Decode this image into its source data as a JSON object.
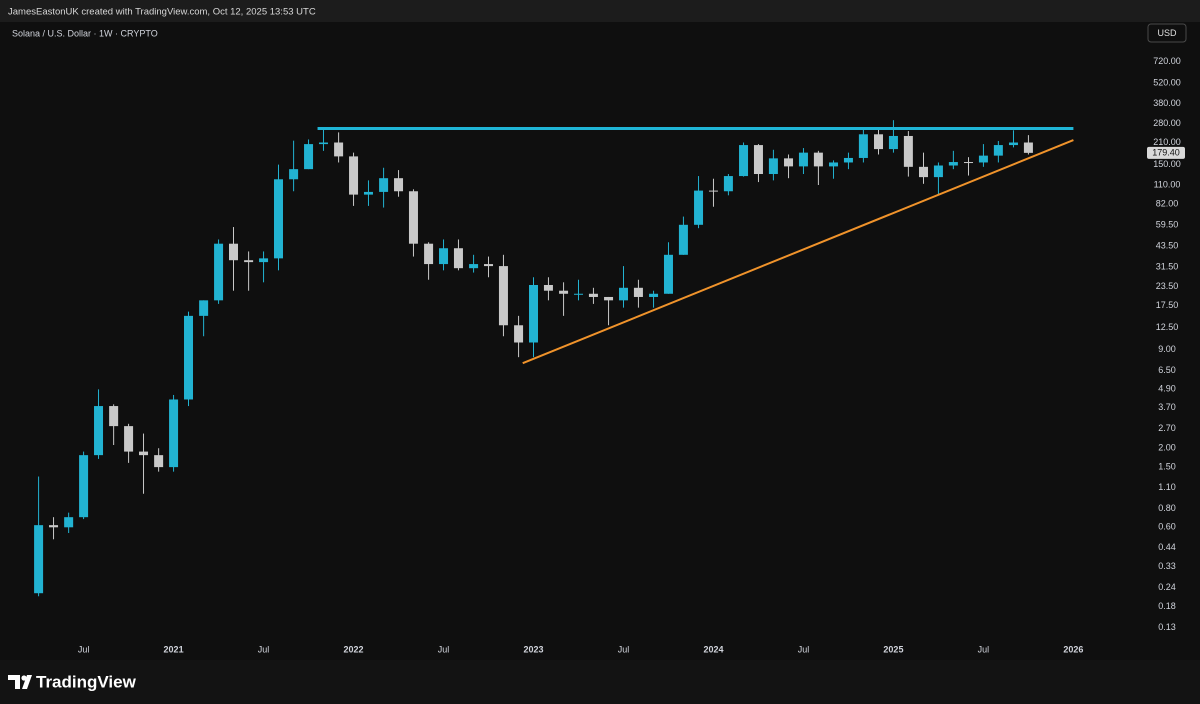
{
  "header": {
    "credit": "JamesEastonUK created with TradingView.com, Oct 12, 2025 13:53 UTC",
    "brand": "TradingView"
  },
  "chart_data": {
    "type": "candlestick",
    "title": "Solana / U.S. Dollar · 1W · CRYPTO",
    "currency": "USD",
    "log_scale": true,
    "grid": false,
    "up_color": "#22b3d2",
    "down_color": "#c9c9c9",
    "x": [
      2020.25,
      2020.333,
      2020.417,
      2020.5,
      2020.583,
      2020.667,
      2020.75,
      2020.833,
      2020.917,
      2021,
      2021.083,
      2021.167,
      2021.25,
      2021.333,
      2021.417,
      2021.5,
      2021.583,
      2021.667,
      2021.75,
      2021.833,
      2021.917,
      2022,
      2022.083,
      2022.167,
      2022.25,
      2022.333,
      2022.417,
      2022.5,
      2022.583,
      2022.667,
      2022.75,
      2022.833,
      2022.917,
      2023,
      2023.083,
      2023.167,
      2023.25,
      2023.333,
      2023.417,
      2023.5,
      2023.583,
      2023.667,
      2023.75,
      2023.833,
      2023.917,
      2024,
      2024.083,
      2024.167,
      2024.25,
      2024.333,
      2024.417,
      2024.5,
      2024.583,
      2024.667,
      2024.75,
      2024.833,
      2024.917,
      2025,
      2025.083,
      2025.167,
      2025.25,
      2025.333,
      2025.417,
      2025.5,
      2025.583,
      2025.667,
      2025.75
    ],
    "open": [
      0.22,
      0.62,
      0.6,
      0.7,
      1.8,
      3.8,
      2.8,
      1.9,
      1.8,
      1.5,
      4.2,
      15,
      19,
      45,
      35,
      34,
      36,
      120,
      140,
      205,
      210,
      170,
      95,
      99,
      122,
      100,
      45,
      33,
      42,
      31,
      33,
      32,
      13,
      10,
      24,
      22,
      21,
      21,
      20,
      19,
      23,
      20,
      21,
      38,
      60,
      101,
      100,
      126,
      202,
      130,
      165,
      146,
      180,
      146,
      155,
      166,
      238,
      190,
      232,
      145,
      124,
      148,
      156,
      155,
      172,
      202,
      210
    ],
    "high": [
      1.3,
      0.7,
      0.75,
      1.9,
      4.9,
      3.9,
      2.9,
      2.5,
      2.0,
      4.5,
      16,
      19,
      48,
      58,
      40,
      40,
      150,
      216,
      220,
      260,
      245,
      180,
      118,
      143,
      138,
      103,
      46,
      48,
      48,
      38,
      37,
      38,
      15,
      27,
      27,
      25,
      26,
      23,
      20,
      32,
      26,
      22,
      46,
      68,
      126,
      121,
      130,
      210,
      205,
      188,
      175,
      193,
      185,
      160,
      180,
      265,
      264,
      295,
      250,
      180,
      155,
      185,
      168,
      205,
      215,
      253,
      235
    ],
    "low": [
      0.21,
      0.5,
      0.55,
      0.68,
      1.7,
      2.1,
      1.6,
      1.0,
      1.4,
      1.4,
      3.8,
      11,
      18,
      22,
      22,
      25,
      30,
      100,
      140,
      185,
      155,
      80,
      80,
      78,
      92,
      37,
      26,
      30,
      30,
      29,
      27,
      11,
      8,
      8,
      19,
      15,
      19,
      18,
      13,
      17,
      17,
      17,
      21,
      38,
      57,
      79,
      94,
      125,
      115,
      118,
      122,
      130,
      110,
      121,
      140,
      155,
      175,
      180,
      125,
      112,
      95,
      140,
      127,
      145,
      155,
      195,
      175
    ],
    "close": [
      0.62,
      0.6,
      0.7,
      1.8,
      3.8,
      2.8,
      1.9,
      1.8,
      1.5,
      4.2,
      15,
      19,
      45,
      35,
      34,
      36,
      120,
      140,
      205,
      210,
      170,
      95,
      99,
      122,
      100,
      45,
      33,
      42,
      31,
      33,
      32,
      13,
      10,
      24,
      22,
      21,
      21,
      20,
      19,
      23,
      20,
      21,
      38,
      60,
      101,
      100,
      126,
      202,
      130,
      165,
      146,
      180,
      146,
      155,
      166,
      238,
      190,
      232,
      145,
      124,
      148,
      156,
      155,
      172,
      202,
      210,
      179.4
    ],
    "close_label": "179.40",
    "xlim": [
      2020.08,
      2026.37
    ],
    "ylim": [
      0.1,
      1000
    ],
    "xticks": [
      {
        "value": 2020.5,
        "label": "Jul"
      },
      2021,
      {
        "value": 2021.5,
        "label": "Jul"
      },
      2022,
      {
        "value": 2022.5,
        "label": "Jul"
      },
      2023,
      {
        "value": 2023.5,
        "label": "Jul"
      },
      2024,
      {
        "value": 2024.5,
        "label": "Jul"
      },
      2025,
      {
        "value": 2025.5,
        "label": "Jul"
      },
      2026
    ],
    "yticks": [
      {
        "value": 720,
        "label": "720.00"
      },
      {
        "value": 520,
        "label": "520.00"
      },
      {
        "value": 380,
        "label": "380.00"
      },
      {
        "value": 280,
        "label": "280.00"
      },
      {
        "value": 210,
        "label": "210.00"
      },
      {
        "value": 150,
        "label": "150.00"
      },
      {
        "value": 110,
        "label": "110.00"
      },
      {
        "value": 82,
        "label": "82.00"
      },
      {
        "value": 59.5,
        "label": "59.50"
      },
      {
        "value": 43.5,
        "label": "43.50"
      },
      {
        "value": 31.5,
        "label": "31.50"
      },
      {
        "value": 23.5,
        "label": "23.50"
      },
      {
        "value": 17.5,
        "label": "17.50"
      },
      {
        "value": 12.5,
        "label": "12.50"
      },
      {
        "value": 9,
        "label": "9.00"
      },
      {
        "value": 6.5,
        "label": "6.50"
      },
      {
        "value": 4.9,
        "label": "4.90"
      },
      {
        "value": 3.7,
        "label": "3.70"
      },
      {
        "value": 2.7,
        "label": "2.70"
      },
      {
        "value": 2,
        "label": "2.00"
      },
      {
        "value": 1.5,
        "label": "1.50"
      },
      {
        "value": 1.1,
        "label": "1.10"
      },
      {
        "value": 0.8,
        "label": "0.80"
      },
      {
        "value": 0.6,
        "label": "0.60"
      },
      {
        "value": 0.44,
        "label": "0.44"
      },
      {
        "value": 0.33,
        "label": "0.33"
      },
      {
        "value": 0.24,
        "label": "0.24"
      },
      {
        "value": 0.18,
        "label": "0.18"
      },
      {
        "value": 0.13,
        "label": "0.13"
      }
    ],
    "trendlines": [
      {
        "color": "#1fb5d6",
        "x": [
          2021.8,
          2026.0
        ],
        "y": [
          260,
          260
        ]
      },
      {
        "color": "#f0932b",
        "x": [
          2022.94,
          2026.0
        ],
        "y": [
          7.3,
          218
        ]
      }
    ]
  }
}
